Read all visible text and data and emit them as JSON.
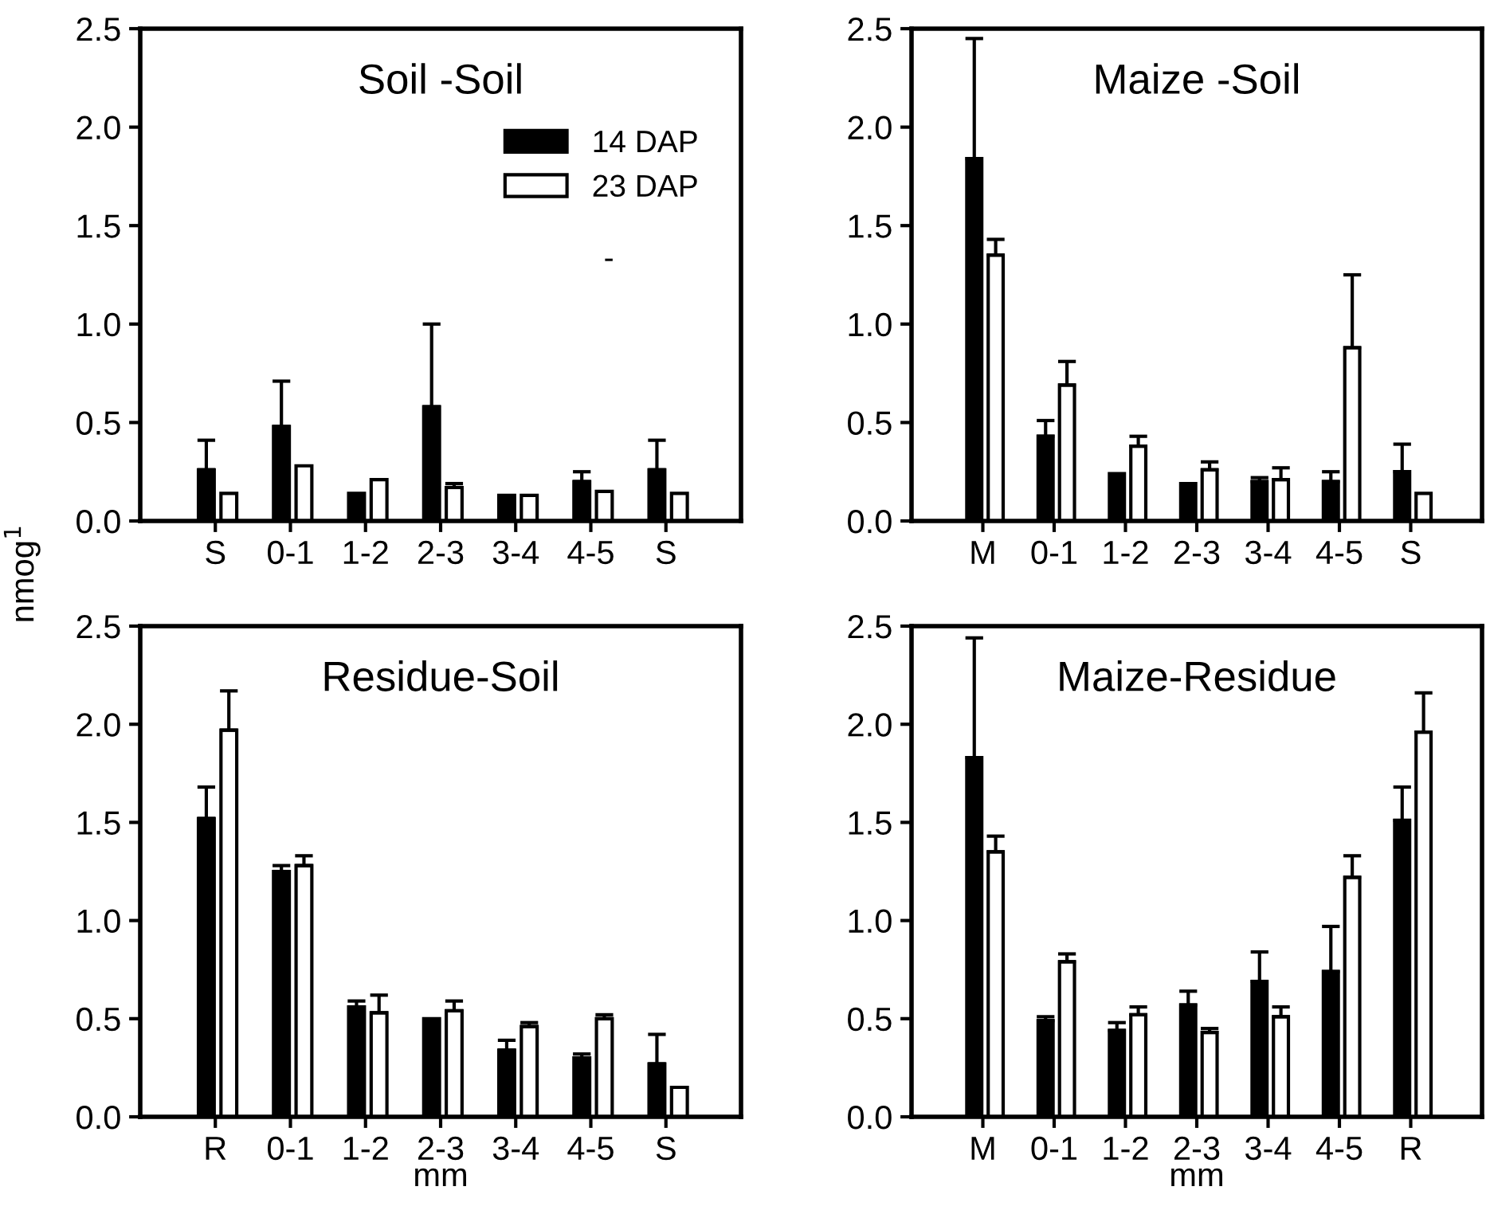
{
  "chart_data": [
    {
      "type": "bar",
      "title": "Soil -Soil",
      "ylabel": "nmog$^{1}$",
      "categories": [
        "S",
        "0-1",
        "1-2",
        "2-3",
        "3-4",
        "4-5",
        "S"
      ],
      "ylim": [
        0,
        2.5
      ],
      "yticks": [
        {
          "value": 0,
          "label": "0.0"
        },
        {
          "value": 0.5,
          "label": "0.5"
        },
        {
          "value": 1,
          "label": "1.0"
        },
        {
          "value": 1.5,
          "label": "1.5"
        },
        {
          "value": 2,
          "label": "2.0"
        },
        {
          "value": 2.5,
          "label": "2.5"
        }
      ],
      "legend": "top right",
      "annotations": [
        "-"
      ],
      "series": [
        {
          "name": "14 DAP",
          "color": "#000000",
          "values": [
            0.26,
            0.48,
            0.14,
            0.58,
            0.13,
            0.2,
            0.26
          ],
          "errors": [
            0.15,
            0.23,
            null,
            0.42,
            null,
            0.05,
            0.15
          ]
        },
        {
          "name": "23 DAP",
          "color": "#ffffff",
          "values": [
            0.14,
            0.28,
            0.21,
            0.17,
            0.13,
            0.15,
            0.14
          ],
          "errors": [
            null,
            null,
            null,
            0.02,
            null,
            null,
            null
          ]
        }
      ]
    },
    {
      "type": "bar",
      "title": "Maize -Soil",
      "categories": [
        "M",
        "0-1",
        "1-2",
        "2-3",
        "3-4",
        "4-5",
        "S"
      ],
      "ylim": [
        0,
        2.5
      ],
      "yticks": [
        {
          "value": 0,
          "label": "0.0"
        },
        {
          "value": 0.5,
          "label": "0.5"
        },
        {
          "value": 1,
          "label": "1.0"
        },
        {
          "value": 1.5,
          "label": "1.5"
        },
        {
          "value": 2,
          "label": "2.0"
        },
        {
          "value": 2.5,
          "label": "2.5"
        }
      ],
      "series": [
        {
          "color": "#000000",
          "values": [
            1.84,
            0.43,
            0.24,
            0.19,
            0.2,
            0.2,
            0.25
          ],
          "errors": [
            0.61,
            0.08,
            null,
            null,
            0.02,
            0.05,
            0.14
          ]
        },
        {
          "color": "#ffffff",
          "values": [
            1.35,
            0.69,
            0.38,
            0.26,
            0.21,
            0.88,
            0.14
          ],
          "errors": [
            0.08,
            0.12,
            0.05,
            0.04,
            0.06,
            0.37,
            null
          ]
        }
      ]
    },
    {
      "type": "bar",
      "title": "Residue-Soil",
      "xlabel": "mm",
      "categories": [
        "R",
        "0-1",
        "1-2",
        "2-3",
        "3-4",
        "4-5",
        "S"
      ],
      "ylim": [
        0,
        2.5
      ],
      "yticks": [
        {
          "value": 0,
          "label": "0.0"
        },
        {
          "value": 0.5,
          "label": "0.5"
        },
        {
          "value": 1,
          "label": "1.0"
        },
        {
          "value": 1.5,
          "label": "1.5"
        },
        {
          "value": 2,
          "label": "2.0"
        },
        {
          "value": 2.5,
          "label": "2.5"
        }
      ],
      "series": [
        {
          "color": "#000000",
          "values": [
            1.52,
            1.25,
            0.56,
            0.5,
            0.34,
            0.3,
            0.27
          ],
          "errors": [
            0.16,
            0.03,
            0.03,
            null,
            0.05,
            0.02,
            0.15
          ]
        },
        {
          "color": "#ffffff",
          "values": [
            1.97,
            1.28,
            0.53,
            0.54,
            0.46,
            0.5,
            0.15
          ],
          "errors": [
            0.2,
            0.05,
            0.09,
            0.05,
            0.02,
            0.02,
            null
          ]
        }
      ]
    },
    {
      "type": "bar",
      "title": "Maize-Residue",
      "xlabel": "mm",
      "categories": [
        "M",
        "0-1",
        "1-2",
        "2-3",
        "3-4",
        "4-5",
        "R"
      ],
      "ylim": [
        0,
        2.5
      ],
      "yticks": [
        {
          "value": 0,
          "label": "0.0"
        },
        {
          "value": 0.5,
          "label": "0.5"
        },
        {
          "value": 1,
          "label": "1.0"
        },
        {
          "value": 1.5,
          "label": "1.5"
        },
        {
          "value": 2,
          "label": "2.0"
        },
        {
          "value": 2.5,
          "label": "2.5"
        }
      ],
      "series": [
        {
          "color": "#000000",
          "values": [
            1.83,
            0.49,
            0.44,
            0.57,
            0.69,
            0.74,
            1.51
          ],
          "errors": [
            0.61,
            0.02,
            0.04,
            0.07,
            0.15,
            0.23,
            0.17
          ]
        },
        {
          "color": "#ffffff",
          "values": [
            1.35,
            0.79,
            0.52,
            0.43,
            0.51,
            1.22,
            1.96
          ],
          "errors": [
            0.08,
            0.04,
            0.04,
            0.02,
            0.05,
            0.11,
            0.2
          ]
        }
      ]
    }
  ]
}
